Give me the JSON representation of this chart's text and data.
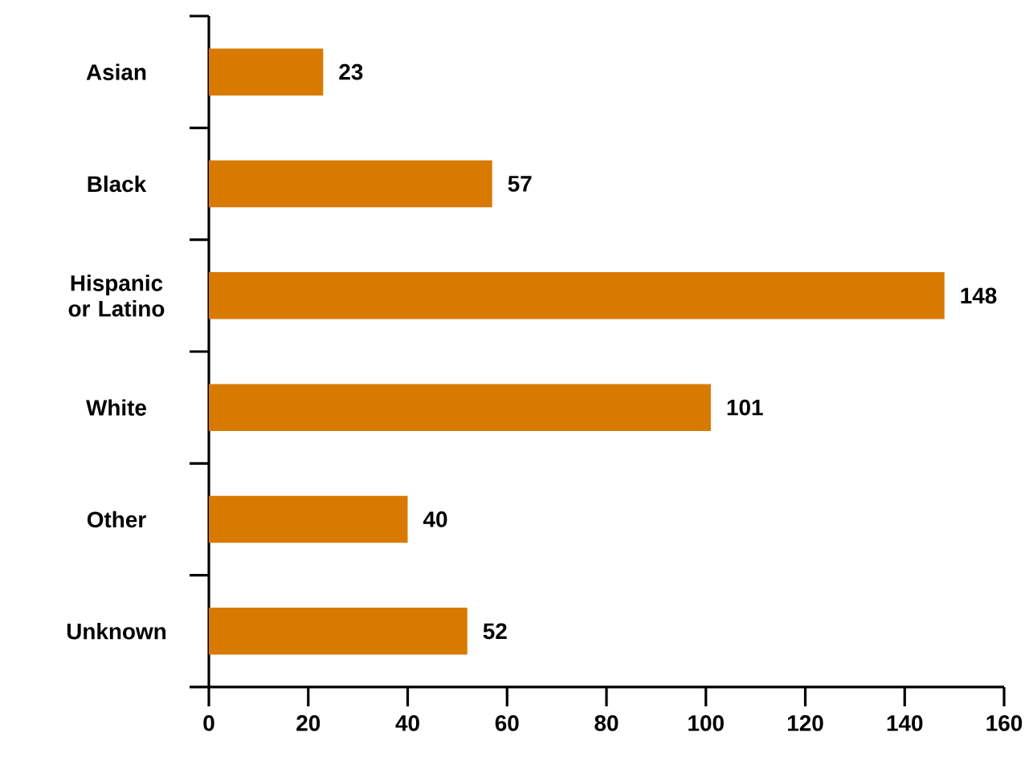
{
  "chart_data": {
    "type": "bar",
    "orientation": "horizontal",
    "categories": [
      "Asian",
      "Black",
      "Hispanic or Latino",
      "White",
      "Other",
      "Unknown"
    ],
    "values": [
      23,
      57,
      148,
      101,
      40,
      52
    ],
    "color": "#d97a00",
    "xlim": [
      0,
      160
    ],
    "xticks": [
      0,
      20,
      40,
      60,
      80,
      100,
      120,
      140,
      160
    ],
    "data_labels": true,
    "grid": false
  }
}
